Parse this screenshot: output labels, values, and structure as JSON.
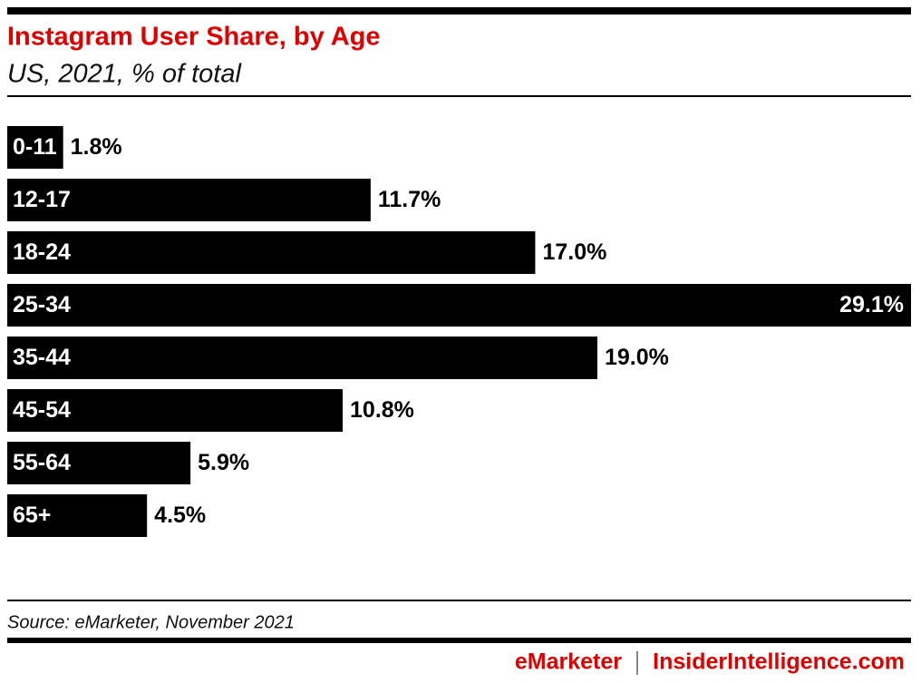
{
  "chart_data": {
    "type": "bar",
    "orientation": "horizontal",
    "title": "Instagram User Share, by Age",
    "subtitle": "US, 2021, % of total",
    "categories": [
      "0-11",
      "12-17",
      "18-24",
      "25-34",
      "35-44",
      "45-54",
      "55-64",
      "65+"
    ],
    "values": [
      1.8,
      11.7,
      17.0,
      29.1,
      19.0,
      10.8,
      5.9,
      4.5
    ],
    "value_labels": [
      "1.8%",
      "11.7%",
      "17.0%",
      "29.1%",
      "19.0%",
      "10.8%",
      "5.9%",
      "4.5%"
    ],
    "color": "#000000",
    "source": "Source: eMarketer, November 2021",
    "brand": [
      "eMarketer",
      "InsiderIntelligence.com"
    ]
  }
}
